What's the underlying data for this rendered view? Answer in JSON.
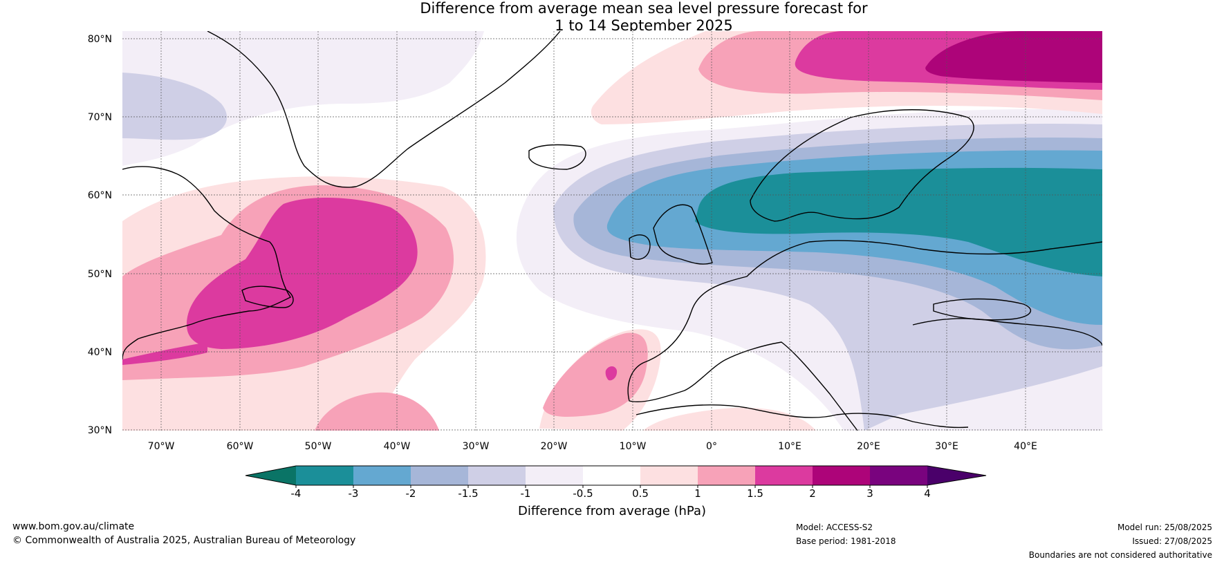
{
  "title_line1": "Difference from average mean sea level pressure forecast for",
  "title_line2": "1 to 14 September 2025",
  "lat_labels": [
    "80°N",
    "70°N",
    "60°N",
    "50°N",
    "40°N",
    "30°N"
  ],
  "lon_labels": [
    "70°W",
    "60°W",
    "50°W",
    "40°W",
    "30°W",
    "20°W",
    "10°W",
    "0°",
    "10°E",
    "20°E",
    "30°E",
    "40°E"
  ],
  "legend": {
    "ticks": [
      "-4",
      "-3",
      "-2",
      "-1.5",
      "-1",
      "-0.5",
      "0.5",
      "1",
      "1.5",
      "2",
      "3",
      "4"
    ],
    "colors": [
      "#0a7466",
      "#1b8f99",
      "#64a8d1",
      "#a6b6d8",
      "#cfcfe6",
      "#f3eef7",
      "#ffffff",
      "#fde0e1",
      "#f7a2b8",
      "#dc3a9f",
      "#ad0479",
      "#79037e",
      "#4a006a"
    ],
    "label": "Difference from average (hPa)"
  },
  "footer": {
    "website": "www.bom.gov.au/climate",
    "copyright": "© Commonwealth of Australia 2025, Australian Bureau of Meteorology",
    "model": "Model: ACCESS-S2",
    "base_period": "Base period: 1981-2018",
    "model_run": "Model run: 25/08/2025",
    "issued": "Issued: 27/08/2025",
    "disclaimer": "Boundaries are not considered authoritative"
  }
}
